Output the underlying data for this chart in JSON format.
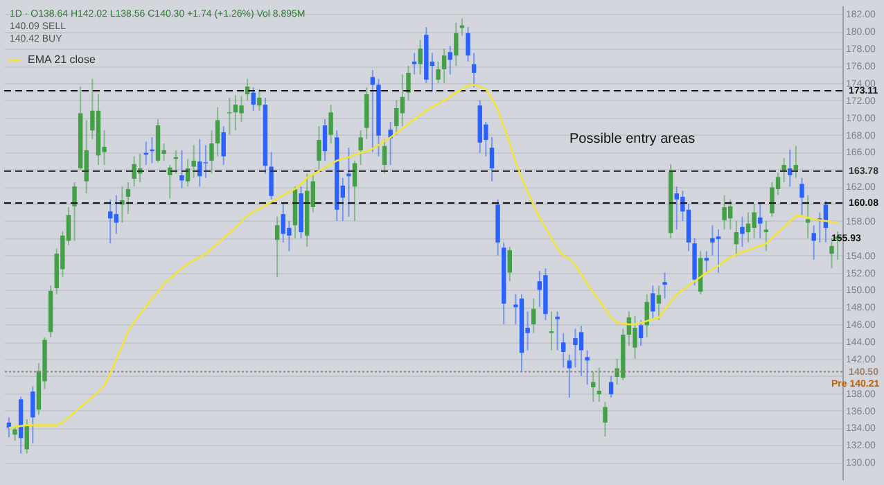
{
  "chart_data": {
    "type": "candlestick",
    "subtitle": "1D · O138.64 H142.02 L138.56 C140.30 +1.74 (+1.26%) Vol 8.895M",
    "categories": [
      null,
      null,
      null,
      null,
      null,
      null,
      null,
      null,
      null,
      null,
      null,
      null,
      null,
      null,
      null,
      null,
      null,
      null,
      null,
      null,
      null,
      null,
      null,
      null,
      null,
      null,
      null,
      null,
      null,
      null,
      null,
      null,
      null,
      null,
      null,
      null,
      null,
      null,
      null,
      null,
      null,
      null,
      null,
      null,
      null,
      null,
      null,
      null,
      null,
      null,
      null,
      null,
      null,
      null,
      null,
      null,
      null,
      null,
      null,
      null,
      null,
      null,
      null,
      null,
      null,
      null,
      null,
      null,
      null,
      null,
      null,
      null,
      null,
      null,
      null,
      null,
      null,
      null,
      null,
      null,
      null,
      null,
      null,
      null,
      null,
      null,
      null,
      null,
      null,
      null,
      null,
      null,
      null,
      null,
      null,
      null,
      null,
      null,
      null,
      null,
      null,
      null,
      null,
      null,
      null,
      null,
      null,
      null,
      null,
      null,
      null,
      null,
      null,
      null,
      null,
      null,
      null,
      null,
      null,
      null,
      null,
      null,
      null,
      null,
      null,
      null,
      null,
      null,
      null,
      null,
      null,
      null,
      null,
      null,
      null,
      null,
      null,
      null,
      null,
      null
    ],
    "ohlc": [
      [
        134.6,
        135.2,
        132.9,
        134.0
      ],
      [
        133.2,
        134.2,
        132.5,
        133.8
      ],
      [
        137.3,
        137.6,
        131.0,
        132.8
      ],
      [
        131.5,
        135.0,
        131.0,
        134.3
      ],
      [
        138.2,
        138.8,
        132.2,
        135.2
      ],
      [
        136.1,
        141.5,
        135.5,
        140.6
      ],
      [
        139.4,
        144.5,
        138.5,
        144.2
      ],
      [
        145.1,
        150.5,
        144.5,
        149.9
      ],
      [
        150.2,
        154.8,
        149.5,
        154.2
      ],
      [
        152.4,
        156.8,
        151.5,
        156.3
      ],
      [
        155.7,
        159.6,
        155.2,
        158.7
      ],
      [
        159.7,
        162.5,
        155.7,
        162.0
      ],
      [
        164.1,
        173.6,
        164.0,
        170.5
      ],
      [
        162.6,
        169.7,
        161.2,
        166.2
      ],
      [
        168.5,
        174.5,
        167.5,
        170.8
      ],
      [
        165.6,
        172.7,
        164.5,
        170.8
      ],
      [
        166.0,
        168.5,
        164.5,
        166.6
      ],
      [
        159.1,
        160.5,
        155.4,
        158.3
      ],
      [
        158.8,
        161.0,
        156.5,
        157.8
      ],
      [
        159.9,
        162.0,
        157.8,
        160.4
      ],
      [
        160.8,
        162.5,
        158.8,
        161.7
      ],
      [
        162.9,
        165.5,
        162.0,
        164.6
      ],
      [
        163.5,
        165.8,
        162.5,
        164.1
      ],
      [
        165.9,
        167.2,
        164.5,
        165.7
      ],
      [
        166.3,
        167.7,
        164.7,
        166.1
      ],
      [
        165.0,
        169.8,
        164.8,
        169.1
      ],
      [
        165.8,
        167.0,
        165.0,
        166.2
      ],
      [
        163.3,
        164.5,
        160.6,
        164.2
      ],
      [
        165.2,
        166.2,
        163.5,
        165.4
      ],
      [
        163.3,
        166.2,
        161.8,
        162.7
      ],
      [
        162.6,
        165.2,
        162.0,
        164.1
      ],
      [
        164.3,
        166.8,
        163.0,
        165.0
      ],
      [
        164.9,
        167.5,
        162.0,
        163.2
      ],
      [
        164.8,
        166.8,
        163.0,
        164.7
      ],
      [
        165.0,
        168.5,
        163.5,
        167.0
      ],
      [
        167.0,
        171.2,
        165.5,
        169.7
      ],
      [
        168.3,
        169.0,
        164.5,
        165.5
      ],
      [
        170.5,
        172.3,
        168.0,
        170.6
      ],
      [
        170.6,
        172.6,
        168.5,
        171.5
      ],
      [
        170.5,
        172.5,
        169.5,
        171.4
      ],
      [
        172.7,
        174.5,
        172.0,
        173.6
      ],
      [
        172.9,
        173.5,
        170.8,
        171.5
      ],
      [
        171.4,
        173.3,
        170.8,
        172.3
      ],
      [
        171.5,
        172.3,
        163.5,
        164.4
      ],
      [
        164.3,
        166.0,
        160.5,
        160.9
      ],
      [
        155.8,
        158.5,
        151.5,
        157.5
      ],
      [
        158.8,
        160.0,
        155.5,
        156.5
      ],
      [
        157.2,
        158.0,
        154.5,
        156.3
      ],
      [
        157.5,
        162.0,
        156.0,
        161.7
      ],
      [
        161.2,
        162.0,
        156.0,
        156.7
      ],
      [
        156.3,
        163.5,
        155.0,
        161.5
      ],
      [
        159.6,
        163.5,
        159.0,
        162.6
      ],
      [
        165.0,
        169.0,
        164.0,
        167.4
      ],
      [
        169.1,
        169.8,
        165.0,
        166.1
      ],
      [
        168.0,
        171.5,
        167.0,
        170.6
      ],
      [
        167.7,
        168.5,
        158.0,
        159.3
      ],
      [
        162.1,
        163.0,
        158.0,
        160.7
      ],
      [
        163.5,
        166.5,
        158.5,
        163.2
      ],
      [
        162.0,
        165.0,
        158.0,
        164.7
      ],
      [
        166.2,
        168.5,
        164.5,
        167.7
      ],
      [
        168.8,
        173.5,
        167.5,
        172.7
      ],
      [
        174.7,
        175.5,
        166.0,
        173.8
      ],
      [
        173.8,
        174.5,
        165.5,
        167.9
      ],
      [
        164.5,
        167.5,
        163.5,
        166.7
      ],
      [
        168.6,
        169.5,
        164.5,
        167.6
      ],
      [
        169.0,
        172.0,
        168.0,
        171.1
      ],
      [
        170.5,
        175.0,
        169.0,
        172.4
      ],
      [
        172.9,
        176.0,
        172.0,
        175.2
      ],
      [
        176.5,
        177.5,
        175.0,
        176.2
      ],
      [
        176.2,
        179.0,
        175.0,
        178.0
      ],
      [
        179.6,
        180.5,
        174.0,
        174.4
      ],
      [
        176.5,
        177.5,
        173.0,
        176.0
      ],
      [
        174.4,
        176.5,
        174.0,
        175.6
      ],
      [
        175.6,
        178.0,
        174.0,
        177.2
      ],
      [
        177.6,
        178.3,
        175.0,
        176.7
      ],
      [
        177.2,
        181.0,
        176.0,
        179.8
      ],
      [
        180.4,
        181.5,
        179.5,
        180.7
      ],
      [
        179.8,
        180.5,
        176.5,
        177.2
      ],
      [
        176.2,
        177.5,
        173.5,
        175.2
      ],
      [
        171.4,
        172.0,
        165.9,
        167.1
      ],
      [
        169.2,
        169.5,
        165.5,
        167.4
      ],
      [
        166.5,
        167.7,
        162.6,
        164.1
      ],
      [
        159.9,
        160.5,
        154.0,
        155.5
      ],
      [
        154.9,
        155.5,
        146.0,
        148.4
      ],
      [
        152.0,
        155.0,
        151.0,
        154.6
      ],
      [
        148.3,
        149.5,
        146.0,
        148.0
      ],
      [
        149.0,
        149.5,
        140.5,
        142.7
      ],
      [
        145.6,
        147.5,
        143.0,
        145.0
      ],
      [
        146.0,
        149.0,
        145.0,
        147.8
      ],
      [
        151.0,
        152.2,
        148.0,
        150.0
      ],
      [
        151.7,
        152.5,
        146.5,
        147.2
      ],
      [
        145.0,
        147.5,
        143.0,
        145.2
      ],
      [
        146.9,
        147.5,
        143.0,
        146.6
      ],
      [
        143.9,
        145.0,
        141.0,
        142.8
      ],
      [
        141.8,
        142.5,
        137.5,
        140.9
      ],
      [
        144.4,
        145.5,
        141.0,
        143.6
      ],
      [
        145.1,
        145.8,
        140.0,
        143.0
      ],
      [
        142.2,
        143.0,
        139.0,
        141.8
      ],
      [
        138.7,
        140.5,
        137.0,
        139.3
      ],
      [
        137.9,
        141.0,
        137.0,
        138.3
      ],
      [
        134.6,
        137.0,
        133.0,
        136.4
      ],
      [
        139.3,
        140.0,
        137.5,
        137.9
      ],
      [
        139.9,
        142.0,
        139.0,
        140.9
      ],
      [
        139.8,
        145.5,
        139.5,
        144.8
      ],
      [
        144.8,
        147.5,
        143.5,
        146.8
      ],
      [
        143.3,
        147.0,
        142.0,
        145.6
      ],
      [
        145.9,
        146.5,
        143.5,
        144.4
      ],
      [
        145.9,
        149.5,
        144.5,
        148.6
      ],
      [
        149.6,
        150.5,
        146.5,
        147.5
      ],
      [
        148.4,
        150.5,
        146.5,
        149.4
      ],
      [
        150.9,
        152.0,
        149.0,
        150.6
      ],
      [
        156.6,
        164.6,
        156.0,
        163.7
      ],
      [
        161.2,
        162.0,
        157.0,
        160.5
      ],
      [
        160.8,
        161.5,
        158.0,
        159.1
      ],
      [
        159.3,
        160.0,
        154.5,
        155.5
      ],
      [
        155.4,
        156.0,
        150.5,
        151.2
      ],
      [
        149.8,
        154.5,
        149.5,
        153.7
      ],
      [
        153.7,
        154.5,
        152.0,
        153.4
      ],
      [
        156.0,
        157.5,
        154.0,
        155.5
      ],
      [
        156.2,
        157.0,
        152.0,
        155.9
      ],
      [
        158.1,
        161.0,
        157.0,
        159.6
      ],
      [
        158.3,
        160.5,
        157.0,
        159.7
      ],
      [
        155.3,
        158.0,
        154.0,
        156.7
      ],
      [
        157.3,
        158.5,
        155.0,
        156.5
      ],
      [
        156.7,
        159.0,
        155.5,
        157.7
      ],
      [
        157.2,
        160.0,
        156.0,
        159.0
      ],
      [
        158.4,
        160.0,
        156.0,
        157.7
      ],
      [
        156.7,
        158.0,
        154.5,
        157.0
      ],
      [
        158.9,
        162.5,
        158.5,
        161.9
      ],
      [
        161.7,
        163.6,
        161.0,
        163.1
      ],
      [
        163.8,
        165.3,
        162.5,
        164.5
      ],
      [
        164.1,
        166.3,
        162.0,
        163.3
      ],
      [
        163.9,
        166.7,
        163.0,
        164.5
      ],
      [
        162.3,
        163.0,
        158.5,
        160.7
      ],
      [
        157.8,
        161.0,
        156.0,
        158.2
      ],
      [
        156.6,
        157.5,
        153.5,
        155.7
      ],
      [
        158.3,
        159.0,
        155.5,
        158.0
      ],
      [
        159.9,
        160.3,
        155.5,
        157.2
      ],
      [
        154.2,
        156.0,
        152.5,
        155.1
      ],
      [
        155.9,
        156.8,
        153.5,
        156.2
      ]
    ],
    "colors": [
      "#2962ff",
      "#43a047",
      "#2962ff",
      "#43a047",
      "#2962ff",
      "#43a047",
      "#43a047",
      "#43a047",
      "#43a047",
      "#43a047",
      "#43a047",
      "#43a047",
      "#43a047",
      "#43a047",
      "#43a047",
      "#43a047",
      "#43a047",
      "#2962ff",
      "#2962ff",
      "#43a047",
      "#43a047",
      "#43a047",
      "#43a047",
      "#2962ff",
      "#2962ff",
      "#43a047",
      "#43a047",
      "#43a047",
      "#43a047",
      "#2962ff",
      "#43a047",
      "#43a047",
      "#2962ff",
      "#2962ff",
      "#43a047",
      "#43a047",
      "#2962ff",
      "#43a047",
      "#43a047",
      "#43a047",
      "#43a047",
      "#2962ff",
      "#43a047",
      "#2962ff",
      "#2962ff",
      "#43a047",
      "#2962ff",
      "#2962ff",
      "#43a047",
      "#2962ff",
      "#43a047",
      "#43a047",
      "#43a047",
      "#2962ff",
      "#43a047",
      "#2962ff",
      "#2962ff",
      "#2962ff",
      "#43a047",
      "#43a047",
      "#43a047",
      "#2962ff",
      "#2962ff",
      "#43a047",
      "#2962ff",
      "#43a047",
      "#43a047",
      "#43a047",
      "#2962ff",
      "#43a047",
      "#2962ff",
      "#2962ff",
      "#43a047",
      "#43a047",
      "#2962ff",
      "#43a047",
      "#43a047",
      "#2962ff",
      "#2962ff",
      "#2962ff",
      "#2962ff",
      "#2962ff",
      "#2962ff",
      "#2962ff",
      "#43a047",
      "#2962ff",
      "#2962ff",
      "#2962ff",
      "#43a047",
      "#2962ff",
      "#2962ff",
      "#43a047",
      "#2962ff",
      "#2962ff",
      "#2962ff",
      "#2962ff",
      "#2962ff",
      "#2962ff",
      "#43a047",
      "#43a047",
      "#43a047",
      "#2962ff",
      "#43a047",
      "#43a047",
      "#43a047",
      "#43a047",
      "#2962ff",
      "#43a047",
      "#2962ff",
      "#43a047",
      "#2962ff",
      "#43a047",
      "#2962ff",
      "#2962ff",
      "#2962ff",
      "#2962ff",
      "#43a047",
      "#2962ff",
      "#2962ff",
      "#2962ff",
      "#43a047",
      "#43a047",
      "#43a047",
      "#2962ff",
      "#43a047",
      "#43a047",
      "#2962ff",
      "#43a047",
      "#43a047",
      "#43a047",
      "#43a047",
      "#2962ff",
      "#43a047",
      "#2962ff",
      "#43a047",
      "#2962ff",
      "#2962ff",
      "#2962ff",
      "#43a047",
      "#43a047"
    ],
    "series": [
      {
        "name": "EMA 21 close",
        "type": "line",
        "color": "#f2e33a",
        "values": [
          134.0,
          134.1,
          134.2,
          134.3,
          134.3,
          134.3,
          134.3,
          134.3,
          134.3,
          134.6,
          135.2,
          135.8,
          136.4,
          137.0,
          137.6,
          138.2,
          138.9,
          140.3,
          141.9,
          143.5,
          145.2,
          146.3,
          147.2,
          148.1,
          149.0,
          149.8,
          150.7,
          151.3,
          151.9,
          152.5,
          153.0,
          153.4,
          153.8,
          154.2,
          154.8,
          155.4,
          156.0,
          156.6,
          157.2,
          157.9,
          158.6,
          159.1,
          159.4,
          159.8,
          160.2,
          160.6,
          161.0,
          161.4,
          161.7,
          162.3,
          163.0,
          163.4,
          163.8,
          164.2,
          164.6,
          165.0,
          165.2,
          165.4,
          165.7,
          165.9,
          166.1,
          166.4,
          166.8,
          167.3,
          167.7,
          168.2,
          168.7,
          169.3,
          169.8,
          170.3,
          170.8,
          171.2,
          171.6,
          172.0,
          172.4,
          172.9,
          173.3,
          173.7,
          173.8,
          173.6,
          173.3,
          172.2,
          170.9,
          169.0,
          167.0,
          164.8,
          163.0,
          161.4,
          159.8,
          158.4,
          157.2,
          156.0,
          154.8,
          154.0,
          153.6,
          152.9,
          151.8,
          150.7,
          149.7,
          148.8,
          147.8,
          146.8,
          146.2,
          146.1,
          146.0,
          146.0,
          146.2,
          146.4,
          146.6,
          146.8,
          147.7,
          148.6,
          149.5,
          150.0,
          150.5,
          151.0,
          151.5,
          152.0,
          152.4,
          152.8,
          153.3,
          153.8,
          154.1,
          154.4,
          154.6,
          154.9,
          155.1,
          155.4,
          156.0,
          156.7,
          157.3,
          158.0,
          158.6,
          158.6,
          158.4,
          158.2,
          158.1,
          158.0,
          157.9,
          157.8
        ]
      }
    ],
    "ref_lines": [
      {
        "axis": "y",
        "value": 173.11,
        "label": "173.11",
        "color": "#111111",
        "line_style": "dashed"
      },
      {
        "axis": "y",
        "value": 163.78,
        "label": "163.78",
        "color": "#333333",
        "line_style": "dashed"
      },
      {
        "axis": "y",
        "value": 160.08,
        "label": "160.08",
        "color": "#111111",
        "line_style": "dashed"
      },
      {
        "axis": "y",
        "value": 140.5,
        "label": "140.50",
        "color": "#9a8270",
        "line_style": "dotted"
      }
    ],
    "annotations": [
      "Possible entry areas",
      "155.93",
      "Pre 140.21",
      "140.09 SELL",
      "140.42 BUY"
    ],
    "ylim": [
      128,
      183
    ],
    "yticks": [
      {
        "value": 130,
        "label": "130.00"
      },
      {
        "value": 132,
        "label": "132.00"
      },
      {
        "value": 134,
        "label": "134.00"
      },
      {
        "value": 136,
        "label": "136.00"
      },
      {
        "value": 138,
        "label": "138.00"
      },
      {
        "value": 140,
        "label": null
      },
      {
        "value": 142,
        "label": "142.00"
      },
      {
        "value": 144,
        "label": "144.00"
      },
      {
        "value": 146,
        "label": "146.00"
      },
      {
        "value": 148,
        "label": "148.00"
      },
      {
        "value": 150,
        "label": "150.00"
      },
      {
        "value": 152,
        "label": "152.00"
      },
      {
        "value": 154,
        "label": "154.00"
      },
      {
        "value": 156,
        "label": null
      },
      {
        "value": 158,
        "label": "158.00"
      },
      {
        "value": 160,
        "label": null
      },
      {
        "value": 162,
        "label": "162.00"
      },
      {
        "value": 164,
        "label": null
      },
      {
        "value": 166,
        "label": "166.00"
      },
      {
        "value": 168,
        "label": "168.00"
      },
      {
        "value": 170,
        "label": "170.00"
      },
      {
        "value": 172,
        "label": "172.00"
      },
      {
        "value": 174,
        "label": "174.00"
      },
      {
        "value": 176,
        "label": "176.00"
      },
      {
        "value": 178,
        "label": "178.00"
      },
      {
        "value": 180,
        "label": "180.00"
      },
      {
        "value": 182,
        "label": "182.00"
      }
    ],
    "tick_labels": "y",
    "grid": "y",
    "legend": "top left"
  }
}
